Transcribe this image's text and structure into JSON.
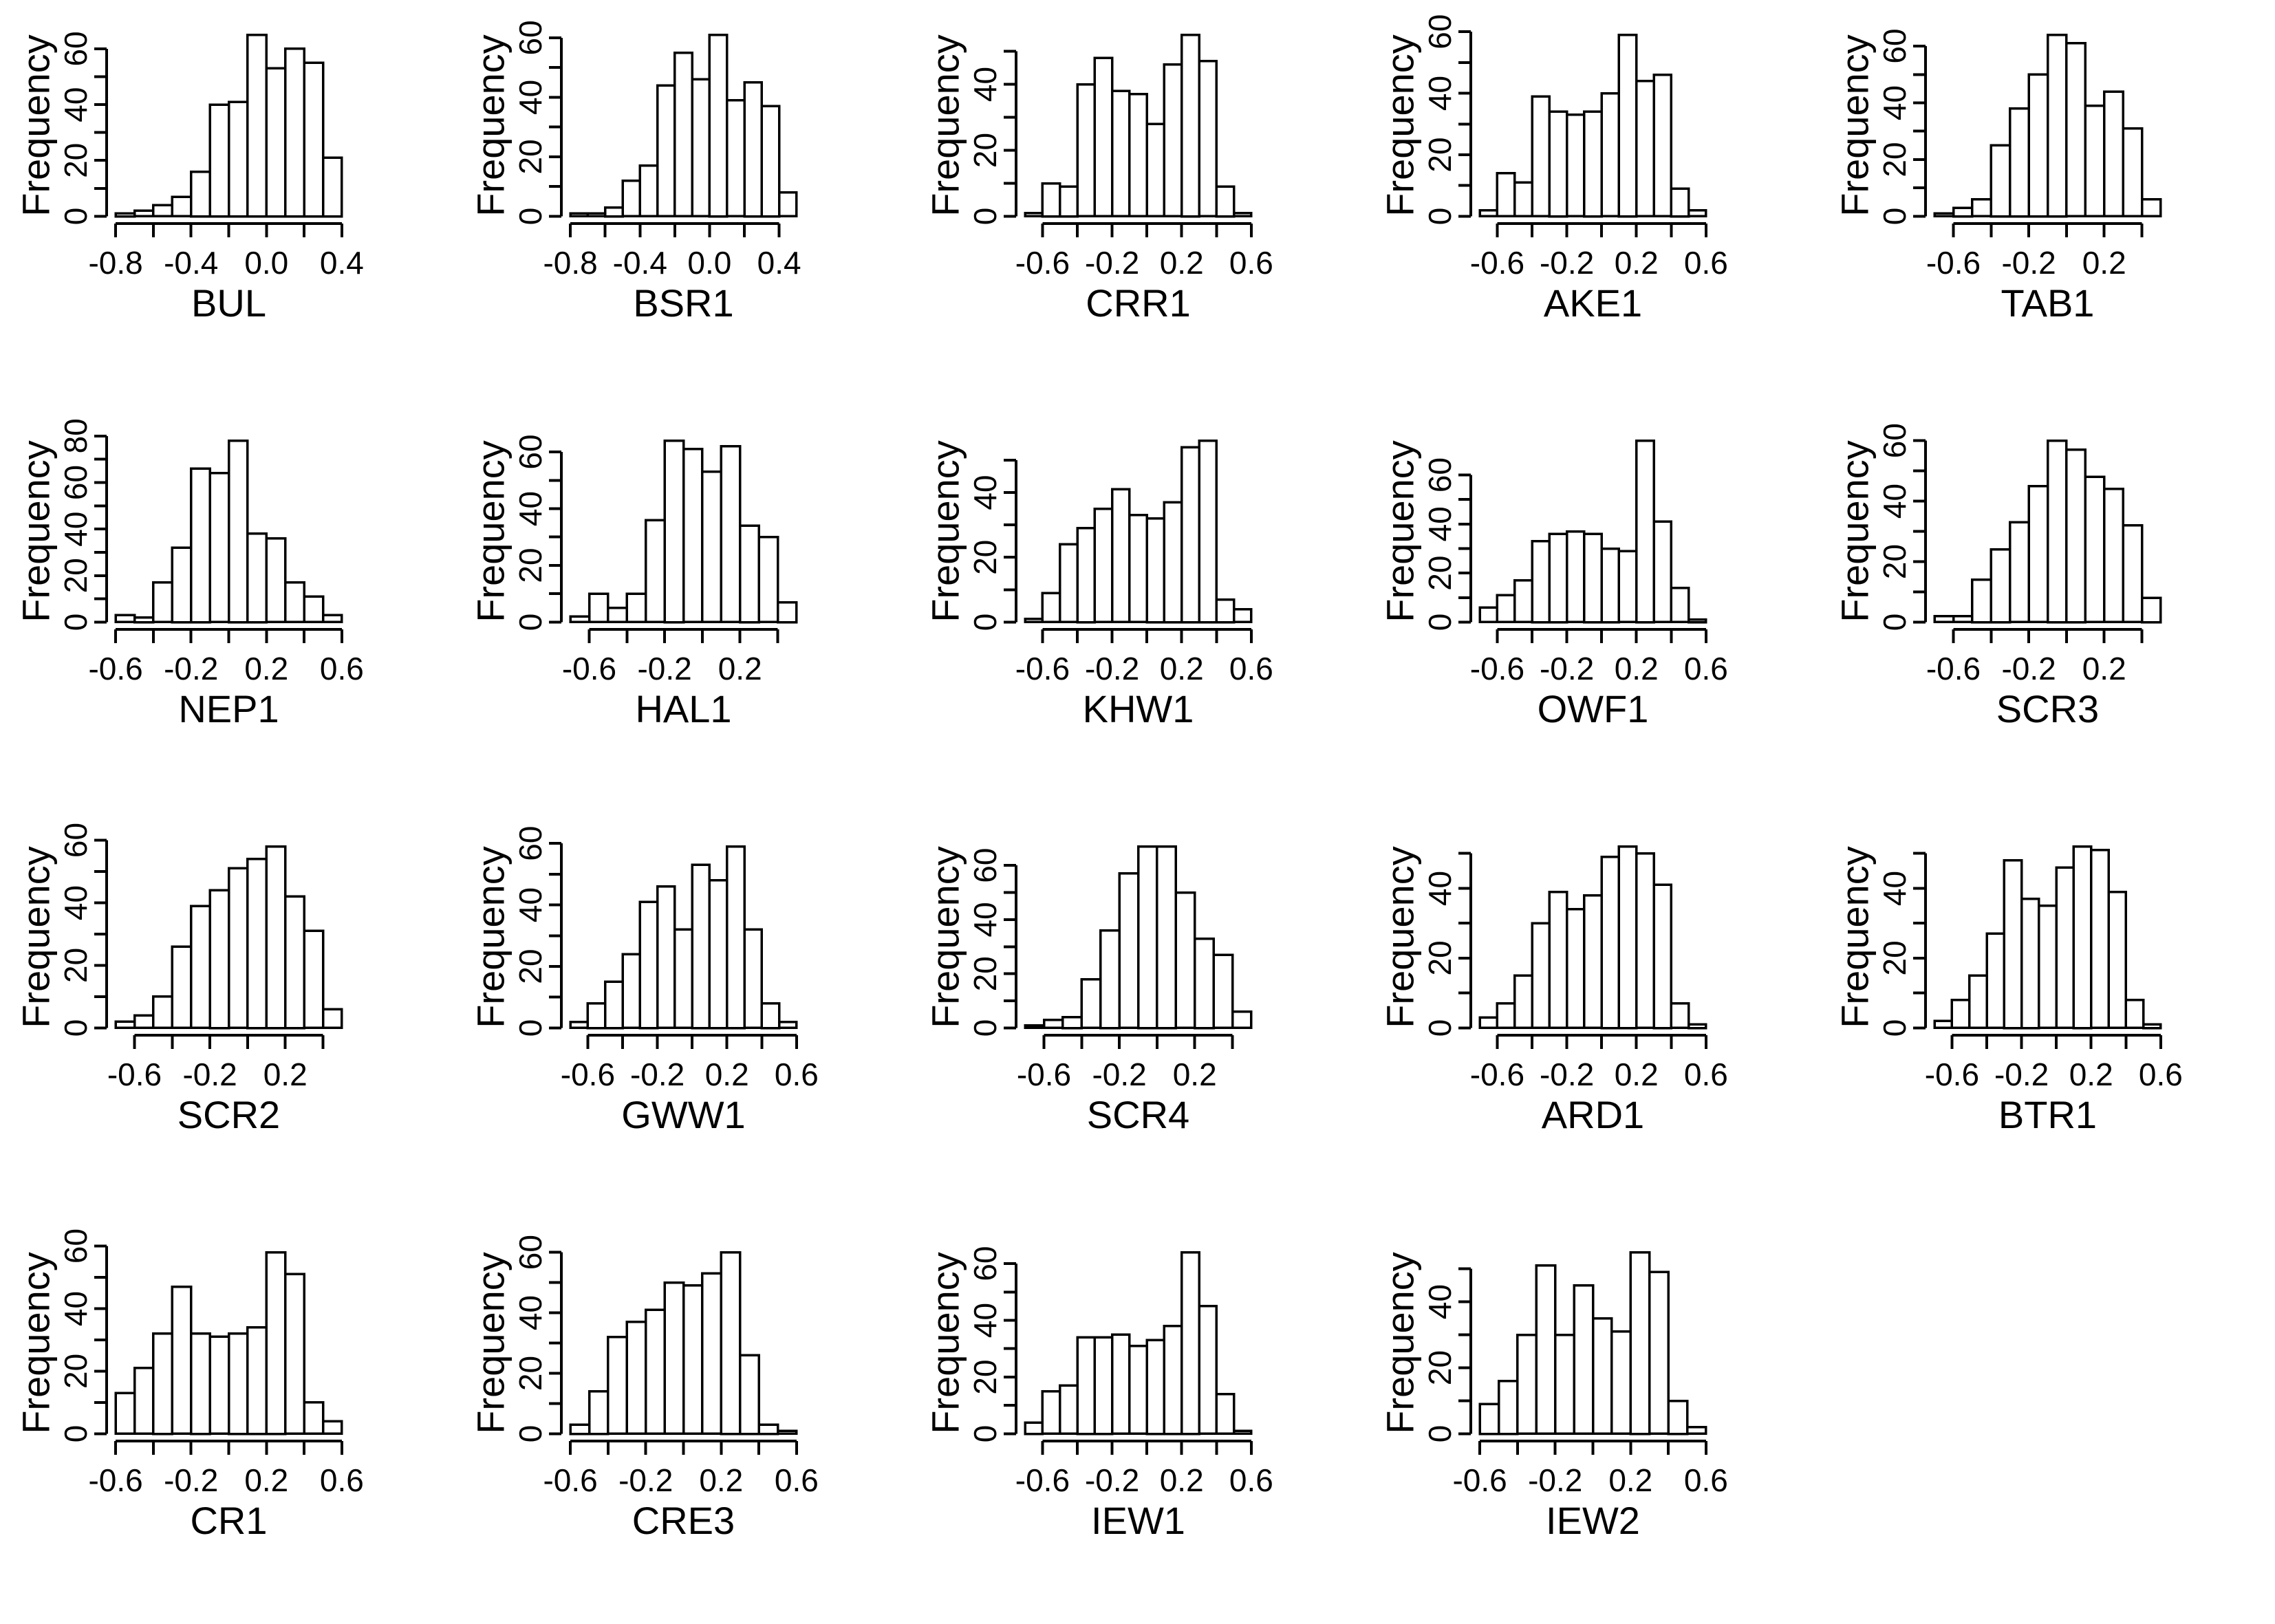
{
  "figure": {
    "background": "#ffffff",
    "line_color": "#000000",
    "ylabel": "Frequency",
    "layout": {
      "columns": 5,
      "rows": 4,
      "panels": 19
    }
  },
  "chart_data": [
    {
      "type": "histogram",
      "title": "BUL",
      "ylabel": "Frequency",
      "bin_start": -0.8,
      "bin_width": 0.1,
      "counts": [
        1,
        2,
        4,
        7,
        16,
        40,
        41,
        65,
        53,
        60,
        55,
        21
      ],
      "xlim": [
        -0.8,
        0.4
      ],
      "x_tick_min": -0.8,
      "x_tick_max": 0.4,
      "x_tick_step": 0.2,
      "x_label_vals": [
        -0.8,
        -0.4,
        0.0,
        0.4
      ],
      "x_label_texts": [
        "-0.8",
        "-0.4",
        "0.0",
        "0.4"
      ],
      "y_top_tick": 60,
      "y_tick_step": 10,
      "y_label_step": 20
    },
    {
      "type": "histogram",
      "title": "BSR1",
      "ylabel": "Frequency",
      "bin_start": -0.8,
      "bin_width": 0.1,
      "counts": [
        1,
        1,
        3,
        12,
        17,
        44,
        55,
        46,
        61,
        39,
        45,
        37,
        8
      ],
      "xlim": [
        -0.8,
        0.5
      ],
      "x_tick_min": -0.8,
      "x_tick_max": 0.4,
      "x_tick_step": 0.2,
      "x_label_vals": [
        -0.8,
        -0.4,
        0.0,
        0.4
      ],
      "x_label_texts": [
        "-0.8",
        "-0.4",
        "0.0",
        "0.4"
      ],
      "y_top_tick": 60,
      "y_tick_step": 10,
      "y_label_step": 20
    },
    {
      "type": "histogram",
      "title": "CRR1",
      "ylabel": "Frequency",
      "bin_start": -0.7,
      "bin_width": 0.1,
      "counts": [
        1,
        10,
        9,
        40,
        48,
        38,
        37,
        28,
        46,
        55,
        47,
        9,
        1
      ],
      "xlim": [
        -0.7,
        0.6
      ],
      "x_tick_min": -0.6,
      "x_tick_max": 0.6,
      "x_tick_step": 0.2,
      "x_label_vals": [
        -0.6,
        -0.2,
        0.2,
        0.6
      ],
      "x_label_texts": [
        "-0.6",
        "-0.2",
        "0.2",
        "0.6"
      ],
      "y_top_tick": 50,
      "y_tick_step": 10,
      "y_label_step": 20
    },
    {
      "type": "histogram",
      "title": "AKE1",
      "ylabel": "Frequency",
      "bin_start": -0.7,
      "bin_width": 0.1,
      "counts": [
        2,
        14,
        11,
        39,
        34,
        33,
        34,
        40,
        59,
        44,
        46,
        9,
        2
      ],
      "xlim": [
        -0.7,
        0.6
      ],
      "x_tick_min": -0.6,
      "x_tick_max": 0.6,
      "x_tick_step": 0.2,
      "x_label_vals": [
        -0.6,
        -0.2,
        0.2,
        0.6
      ],
      "x_label_texts": [
        "-0.6",
        "-0.2",
        "0.2",
        "0.6"
      ],
      "y_top_tick": 60,
      "y_tick_step": 10,
      "y_label_step": 20
    },
    {
      "type": "histogram",
      "title": "TAB1",
      "ylabel": "Frequency",
      "bin_start": -0.7,
      "bin_width": 0.1,
      "counts": [
        1,
        3,
        6,
        25,
        38,
        50,
        64,
        61,
        39,
        44,
        31,
        6
      ],
      "xlim": [
        -0.7,
        0.5
      ],
      "x_tick_min": -0.6,
      "x_tick_max": 0.4,
      "x_tick_step": 0.2,
      "x_label_vals": [
        -0.6,
        -0.2,
        0.2
      ],
      "x_label_texts": [
        "-0.6",
        "-0.2",
        "0.2"
      ],
      "y_top_tick": 60,
      "y_tick_step": 10,
      "y_label_step": 20
    },
    {
      "type": "histogram",
      "title": "NEP1",
      "ylabel": "Frequency",
      "bin_start": -0.6,
      "bin_width": 0.1,
      "counts": [
        3,
        2,
        17,
        32,
        66,
        64,
        78,
        38,
        36,
        17,
        11,
        3
      ],
      "xlim": [
        -0.6,
        0.6
      ],
      "x_tick_min": -0.6,
      "x_tick_max": 0.6,
      "x_tick_step": 0.2,
      "x_label_vals": [
        -0.6,
        -0.2,
        0.2,
        0.6
      ],
      "x_label_texts": [
        "-0.6",
        "-0.2",
        "0.2",
        "0.6"
      ],
      "y_top_tick": 80,
      "y_tick_step": 10,
      "y_label_step": 20
    },
    {
      "type": "histogram",
      "title": "HAL1",
      "ylabel": "Frequency",
      "bin_start": -0.7,
      "bin_width": 0.1,
      "counts": [
        2,
        10,
        5,
        10,
        36,
        64,
        61,
        53,
        62,
        34,
        30,
        7
      ],
      "xlim": [
        -0.7,
        0.5
      ],
      "x_tick_min": -0.6,
      "x_tick_max": 0.4,
      "x_tick_step": 0.2,
      "x_label_vals": [
        -0.6,
        -0.2,
        0.2
      ],
      "x_label_texts": [
        "-0.6",
        "-0.2",
        "0.2"
      ],
      "y_top_tick": 60,
      "y_tick_step": 10,
      "y_label_step": 20
    },
    {
      "type": "histogram",
      "title": "KHW1",
      "ylabel": "Frequency",
      "bin_start": -0.7,
      "bin_width": 0.1,
      "counts": [
        1,
        9,
        24,
        29,
        35,
        41,
        33,
        32,
        37,
        54,
        56,
        7,
        4
      ],
      "xlim": [
        -0.7,
        0.6
      ],
      "x_tick_min": -0.6,
      "x_tick_max": 0.6,
      "x_tick_step": 0.2,
      "x_label_vals": [
        -0.6,
        -0.2,
        0.2,
        0.6
      ],
      "x_label_texts": [
        "-0.6",
        "-0.2",
        "0.2",
        "0.6"
      ],
      "y_top_tick": 50,
      "y_tick_step": 10,
      "y_label_step": 20
    },
    {
      "type": "histogram",
      "title": "OWF1",
      "ylabel": "Frequency",
      "bin_start": -0.7,
      "bin_width": 0.1,
      "counts": [
        6,
        11,
        17,
        33,
        36,
        37,
        36,
        30,
        29,
        74,
        41,
        14,
        1
      ],
      "xlim": [
        -0.7,
        0.6
      ],
      "x_tick_min": -0.6,
      "x_tick_max": 0.6,
      "x_tick_step": 0.2,
      "x_label_vals": [
        -0.6,
        -0.2,
        0.2,
        0.6
      ],
      "x_label_texts": [
        "-0.6",
        "-0.2",
        "0.2",
        "0.6"
      ],
      "y_top_tick": 60,
      "y_tick_step": 10,
      "y_label_step": 20
    },
    {
      "type": "histogram",
      "title": "SCR3",
      "ylabel": "Frequency",
      "bin_start": -0.7,
      "bin_width": 0.1,
      "counts": [
        2,
        2,
        14,
        24,
        33,
        45,
        60,
        57,
        48,
        44,
        32,
        8
      ],
      "xlim": [
        -0.7,
        0.5
      ],
      "x_tick_min": -0.6,
      "x_tick_max": 0.4,
      "x_tick_step": 0.2,
      "x_label_vals": [
        -0.6,
        -0.2,
        0.2
      ],
      "x_label_texts": [
        "-0.6",
        "-0.2",
        "0.2"
      ],
      "y_top_tick": 60,
      "y_tick_step": 10,
      "y_label_step": 20
    },
    {
      "type": "histogram",
      "title": "SCR2",
      "ylabel": "Frequency",
      "bin_start": -0.7,
      "bin_width": 0.1,
      "counts": [
        2,
        4,
        10,
        26,
        39,
        44,
        51,
        54,
        58,
        42,
        31,
        6
      ],
      "xlim": [
        -0.7,
        0.5
      ],
      "x_tick_min": -0.6,
      "x_tick_max": 0.4,
      "x_tick_step": 0.2,
      "x_label_vals": [
        -0.6,
        -0.2,
        0.2
      ],
      "x_label_texts": [
        "-0.6",
        "-0.2",
        "0.2"
      ],
      "y_top_tick": 60,
      "y_tick_step": 10,
      "y_label_step": 20
    },
    {
      "type": "histogram",
      "title": "GWW1",
      "ylabel": "Frequency",
      "bin_start": -0.7,
      "bin_width": 0.1,
      "counts": [
        2,
        8,
        15,
        24,
        41,
        46,
        32,
        53,
        48,
        59,
        32,
        8,
        2
      ],
      "xlim": [
        -0.7,
        0.6
      ],
      "x_tick_min": -0.6,
      "x_tick_max": 0.6,
      "x_tick_step": 0.2,
      "x_label_vals": [
        -0.6,
        -0.2,
        0.2,
        0.6
      ],
      "x_label_texts": [
        "-0.6",
        "-0.2",
        "0.2",
        "0.6"
      ],
      "y_top_tick": 60,
      "y_tick_step": 10,
      "y_label_step": 20
    },
    {
      "type": "histogram",
      "title": "SCR4",
      "ylabel": "Frequency",
      "bin_start": -0.7,
      "bin_width": 0.1,
      "counts": [
        1,
        3,
        4,
        18,
        36,
        57,
        67,
        67,
        50,
        33,
        27,
        6
      ],
      "xlim": [
        -0.7,
        0.5
      ],
      "x_tick_min": -0.6,
      "x_tick_max": 0.4,
      "x_tick_step": 0.2,
      "x_label_vals": [
        -0.6,
        -0.2,
        0.2
      ],
      "x_label_texts": [
        "-0.6",
        "-0.2",
        "0.2"
      ],
      "y_top_tick": 60,
      "y_tick_step": 10,
      "y_label_step": 20
    },
    {
      "type": "histogram",
      "title": "ARD1",
      "ylabel": "Frequency",
      "bin_start": -0.7,
      "bin_width": 0.1,
      "counts": [
        3,
        7,
        15,
        30,
        39,
        34,
        38,
        49,
        52,
        50,
        41,
        7,
        1
      ],
      "xlim": [
        -0.7,
        0.6
      ],
      "x_tick_min": -0.6,
      "x_tick_max": 0.6,
      "x_tick_step": 0.2,
      "x_label_vals": [
        -0.6,
        -0.2,
        0.2,
        0.6
      ],
      "x_label_texts": [
        "-0.6",
        "-0.2",
        "0.2",
        "0.6"
      ],
      "y_top_tick": 50,
      "y_tick_step": 10,
      "y_label_step": 20
    },
    {
      "type": "histogram",
      "title": "BTR1",
      "ylabel": "Frequency",
      "bin_start": -0.7,
      "bin_width": 0.1,
      "counts": [
        2,
        8,
        15,
        27,
        48,
        37,
        35,
        46,
        52,
        51,
        39,
        8,
        1
      ],
      "xlim": [
        -0.7,
        0.6
      ],
      "x_tick_min": -0.6,
      "x_tick_max": 0.6,
      "x_tick_step": 0.2,
      "x_label_vals": [
        -0.6,
        -0.2,
        0.2,
        0.6
      ],
      "x_label_texts": [
        "-0.6",
        "-0.2",
        "0.2",
        "0.6"
      ],
      "y_top_tick": 50,
      "y_tick_step": 10,
      "y_label_step": 20
    },
    {
      "type": "histogram",
      "title": "CR1",
      "ylabel": "Frequency",
      "bin_start": -0.6,
      "bin_width": 0.1,
      "counts": [
        13,
        21,
        32,
        47,
        32,
        31,
        32,
        34,
        58,
        51,
        10,
        4
      ],
      "xlim": [
        -0.6,
        0.6
      ],
      "x_tick_min": -0.6,
      "x_tick_max": 0.6,
      "x_tick_step": 0.2,
      "x_label_vals": [
        -0.6,
        -0.2,
        0.2,
        0.6
      ],
      "x_label_texts": [
        "-0.6",
        "-0.2",
        "0.2",
        "0.6"
      ],
      "y_top_tick": 60,
      "y_tick_step": 10,
      "y_label_step": 20
    },
    {
      "type": "histogram",
      "title": "CRE3",
      "ylabel": "Frequency",
      "bin_start": -0.6,
      "bin_width": 0.1,
      "counts": [
        3,
        14,
        32,
        37,
        41,
        50,
        49,
        53,
        60,
        26,
        3,
        1
      ],
      "xlim": [
        -0.6,
        0.6
      ],
      "x_tick_min": -0.6,
      "x_tick_max": 0.6,
      "x_tick_step": 0.2,
      "x_label_vals": [
        -0.6,
        -0.2,
        0.2,
        0.6
      ],
      "x_label_texts": [
        "-0.6",
        "-0.2",
        "0.2",
        "0.6"
      ],
      "y_top_tick": 60,
      "y_tick_step": 10,
      "y_label_step": 20
    },
    {
      "type": "histogram",
      "title": "IEW1",
      "ylabel": "Frequency",
      "bin_start": -0.7,
      "bin_width": 0.1,
      "counts": [
        4,
        15,
        17,
        34,
        34,
        35,
        31,
        33,
        38,
        64,
        45,
        14,
        1
      ],
      "xlim": [
        -0.7,
        0.6
      ],
      "x_tick_min": -0.6,
      "x_tick_max": 0.6,
      "x_tick_step": 0.2,
      "x_label_vals": [
        -0.6,
        -0.2,
        0.2,
        0.6
      ],
      "x_label_texts": [
        "-0.6",
        "-0.2",
        "0.2",
        "0.6"
      ],
      "y_top_tick": 60,
      "y_tick_step": 10,
      "y_label_step": 20
    },
    {
      "type": "histogram",
      "title": "IEW2",
      "ylabel": "Frequency",
      "bin_start": -0.6,
      "bin_width": 0.1,
      "counts": [
        9,
        16,
        30,
        51,
        30,
        45,
        35,
        31,
        55,
        49,
        10,
        2
      ],
      "xlim": [
        -0.6,
        0.6
      ],
      "x_tick_min": -0.6,
      "x_tick_max": 0.6,
      "x_tick_step": 0.2,
      "x_label_vals": [
        -0.6,
        -0.2,
        0.2,
        0.6
      ],
      "x_label_texts": [
        "-0.6",
        "-0.2",
        "0.2",
        "0.6"
      ],
      "y_top_tick": 50,
      "y_tick_step": 10,
      "y_label_step": 20
    }
  ]
}
